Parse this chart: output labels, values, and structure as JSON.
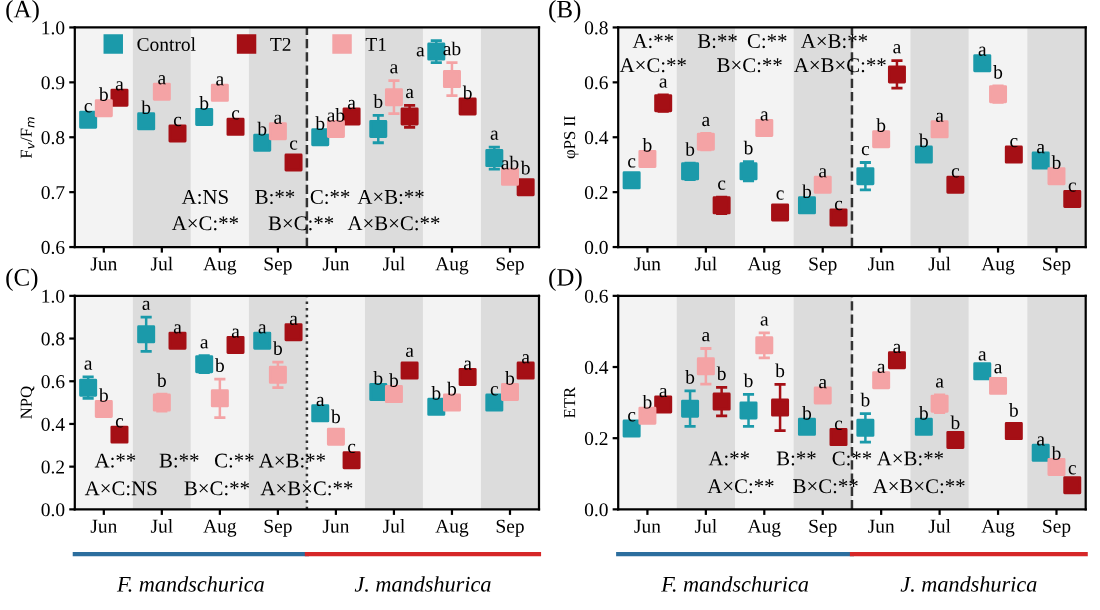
{
  "chart_data": [
    {
      "type": "scatter",
      "title": "(A)",
      "ylabel": "F$_{v}$/F$_{m}$",
      "marker": "square",
      "legend": "top",
      "grid": false,
      "categories": [
        "Jun",
        "Jul",
        "Aug",
        "Sep",
        "Jun",
        "Jul",
        "Aug",
        "Sep"
      ],
      "ylim": [
        0.6,
        1.0
      ],
      "yticks": [
        {
          "value": 0.6,
          "label": "0.6"
        },
        {
          "value": 0.7,
          "label": "0.7"
        },
        {
          "value": 0.8,
          "label": "0.8"
        },
        {
          "value": 0.9,
          "label": "0.9"
        },
        {
          "value": 1.0,
          "label": "1.0"
        }
      ],
      "series": [
        {
          "name": "Control",
          "color": "#1b9aaa",
          "values": [
            0.832,
            0.829,
            0.837,
            0.79,
            0.8,
            0.815,
            0.956,
            0.762
          ],
          "errors": [
            null,
            null,
            null,
            null,
            null,
            0.025,
            0.02,
            0.02
          ],
          "value_labels": [
            "c",
            "b",
            "b",
            "b",
            "b",
            "b",
            "a",
            "a"
          ]
        },
        {
          "name": "T2",
          "color": "#a50f15",
          "values": [
            0.872,
            0.807,
            0.819,
            0.754,
            0.838,
            0.838,
            0.856,
            0.709
          ],
          "errors": [
            null,
            null,
            null,
            0.01,
            null,
            0.02,
            null,
            0.01
          ],
          "value_labels": [
            "a",
            "c",
            "c",
            "c",
            "a",
            "a",
            "b",
            "b"
          ]
        },
        {
          "name": "T1",
          "color": "#f4a3a5",
          "values": [
            0.853,
            0.883,
            0.881,
            0.811,
            0.815,
            0.873,
            0.906,
            0.728
          ],
          "errors": [
            null,
            null,
            null,
            null,
            null,
            0.03,
            0.03,
            null
          ],
          "value_labels": [
            "b",
            "a",
            "a",
            "a",
            "ab",
            "a",
            "ab",
            "ab"
          ]
        }
      ],
      "annotations": [
        "A:NS",
        "B:**",
        "C:**",
        "A×B:**",
        "A×C:**",
        "B×C:**",
        "A×B×C:**"
      ]
    },
    {
      "type": "scatter",
      "title": "(B)",
      "ylabel": "φPS II",
      "marker": "square",
      "grid": false,
      "categories": [
        "Jun",
        "Jul",
        "Aug",
        "Sep",
        "Jun",
        "Jul",
        "Aug",
        "Sep"
      ],
      "ylim": [
        0,
        0.8
      ],
      "yticks": [
        {
          "value": 0,
          "label": "0.0"
        },
        {
          "value": 0.2,
          "label": "0.2"
        },
        {
          "value": 0.4,
          "label": "0.4"
        },
        {
          "value": 0.6,
          "label": "0.6"
        },
        {
          "value": 0.8,
          "label": "0.8"
        }
      ],
      "series": [
        {
          "color": "#1b9aaa",
          "values": [
            0.243,
            0.276,
            0.276,
            0.152,
            0.258,
            0.337,
            0.67,
            0.315
          ],
          "errors": [
            0.02,
            0.03,
            0.035,
            null,
            0.05,
            null,
            null,
            null
          ],
          "value_labels": [
            "c",
            "b",
            "b",
            "b",
            "c",
            "b",
            "a",
            "a"
          ]
        },
        {
          "color": "#a50f15",
          "values": [
            0.524,
            0.152,
            0.126,
            0.108,
            0.629,
            0.227,
            0.337,
            0.175
          ],
          "errors": [
            0.03,
            0.03,
            0.02,
            null,
            0.05,
            null,
            null,
            null
          ],
          "value_labels": [
            "a",
            "c",
            "c",
            "c",
            "a",
            "c",
            "c",
            "c"
          ]
        },
        {
          "color": "#f4a3a5",
          "values": [
            0.321,
            0.384,
            0.434,
            0.227,
            0.393,
            0.429,
            0.557,
            0.258
          ],
          "errors": [
            null,
            0.03,
            null,
            null,
            null,
            null,
            0.03,
            null
          ],
          "value_labels": [
            "b",
            "a",
            "a",
            "a",
            "b",
            "a",
            "b",
            "b"
          ]
        }
      ],
      "annotations": [
        "A:**",
        "B:**",
        "C:**",
        "A×B:**",
        "A×C:**",
        "B×C:**",
        "A×B×C:**"
      ]
    },
    {
      "type": "scatter",
      "title": "(C)",
      "ylabel": "NPQ",
      "marker": "square",
      "grid": false,
      "categories": [
        "Jun",
        "Jul",
        "Aug",
        "Sep",
        "Jun",
        "Jul",
        "Aug",
        "Sep"
      ],
      "ylim": [
        0,
        1.0
      ],
      "yticks": [
        {
          "value": 0,
          "label": "0.0"
        },
        {
          "value": 0.2,
          "label": "0.2"
        },
        {
          "value": 0.4,
          "label": "0.4"
        },
        {
          "value": 0.6,
          "label": "0.6"
        },
        {
          "value": 0.8,
          "label": "0.8"
        },
        {
          "value": 1.0,
          "label": "1.0"
        }
      ],
      "series": [
        {
          "color": "#1b9aaa",
          "values": [
            0.57,
            0.82,
            0.68,
            0.79,
            0.45,
            0.55,
            0.48,
            0.5
          ],
          "errors": [
            0.05,
            0.08,
            0.04,
            null,
            null,
            null,
            null,
            null
          ],
          "value_labels": [
            "a",
            "a",
            "a",
            "a",
            "a",
            "b",
            "b",
            "c"
          ]
        },
        {
          "color": "#a50f15",
          "values": [
            0.35,
            0.79,
            0.77,
            0.83,
            0.23,
            0.65,
            0.62,
            0.65
          ],
          "errors": [
            null,
            null,
            null,
            null,
            null,
            0.03,
            null,
            null
          ],
          "value_labels": [
            "c",
            "a",
            "a",
            "a",
            "c",
            "a",
            "a",
            "a"
          ]
        },
        {
          "color": "#f4a3a5",
          "values": [
            0.47,
            0.5,
            0.52,
            0.63,
            0.34,
            0.54,
            0.5,
            0.55
          ],
          "errors": [
            null,
            0.04,
            0.09,
            0.06,
            0.03,
            null,
            null,
            null
          ],
          "value_labels": [
            "b",
            "b",
            "b",
            "b",
            "b",
            "b",
            "b",
            "b"
          ]
        }
      ],
      "annotations": [
        "A:**",
        "B:**",
        "C:**",
        "A×B:**",
        "A×C:NS",
        "B×C:**",
        "A×B×C:**",
        "F. mandschurica",
        "J. mandshurica"
      ]
    },
    {
      "type": "scatter",
      "title": "(D)",
      "ylabel": "ETR",
      "marker": "square",
      "grid": false,
      "categories": [
        "Jun",
        "Jul",
        "Aug",
        "Sep",
        "Jun",
        "Jul",
        "Aug",
        "Sep"
      ],
      "ylim": [
        0,
        0.6
      ],
      "yticks": [
        {
          "value": 0,
          "label": "0.0"
        },
        {
          "value": 0.2,
          "label": "0.2"
        },
        {
          "value": 0.4,
          "label": "0.4"
        },
        {
          "value": 0.6,
          "label": "0.6"
        }
      ],
      "series": [
        {
          "color": "#1b9aaa",
          "values": [
            0.227,
            0.283,
            0.278,
            0.232,
            0.229,
            0.232,
            0.388,
            0.159
          ],
          "errors": [
            null,
            0.05,
            0.045,
            null,
            0.04,
            null,
            0.01,
            null
          ],
          "value_labels": [
            "c",
            "b",
            "b",
            "b",
            "b",
            "b",
            "a",
            "a"
          ]
        },
        {
          "color": "#a50f15",
          "values": [
            0.295,
            0.303,
            0.286,
            0.203,
            0.419,
            0.195,
            0.22,
            0.068
          ],
          "errors": [
            null,
            0.04,
            0.065,
            null,
            null,
            0.01,
            0.02,
            0.01
          ],
          "value_labels": [
            "a",
            "b",
            "b",
            "c",
            "a",
            "b",
            "b",
            "c"
          ]
        },
        {
          "color": "#f4a3a5",
          "values": [
            0.263,
            0.402,
            0.461,
            0.32,
            0.363,
            0.297,
            0.347,
            0.119
          ],
          "errors": [
            null,
            0.05,
            0.035,
            null,
            null,
            0.025,
            0.015,
            null
          ],
          "value_labels": [
            "b",
            "a",
            "a",
            "a",
            "a",
            "a",
            "a",
            "b"
          ]
        }
      ],
      "annotations": [
        "A:**",
        "B:**",
        "C:**",
        "A×B:**",
        "A×C:**",
        "B×C:**",
        "A×B×C:**",
        "F. mandschurica",
        "J. mandshurica"
      ]
    }
  ]
}
